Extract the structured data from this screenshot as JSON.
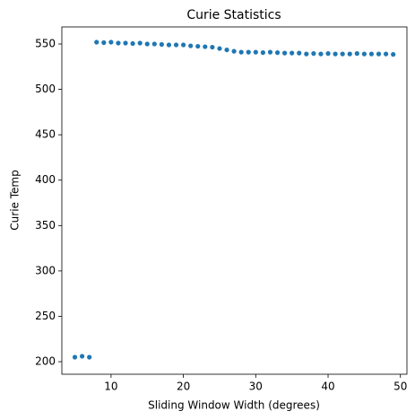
{
  "chart_data": {
    "type": "scatter",
    "title": "Curie Statistics",
    "x_label": "Sliding Window Width (degrees)",
    "y_label": "Curie Temp",
    "series": [
      {
        "name": "Curie Temp",
        "color": "#1f77b4",
        "x": [
          5,
          6,
          7,
          8,
          9,
          10,
          11,
          12,
          13,
          14,
          15,
          16,
          17,
          18,
          19,
          20,
          21,
          22,
          23,
          24,
          25,
          26,
          27,
          28,
          29,
          30,
          31,
          32,
          33,
          34,
          35,
          36,
          37,
          38,
          39,
          40,
          41,
          42,
          43,
          44,
          45,
          46,
          47,
          48,
          49
        ],
        "values": [
          205,
          206,
          205,
          552,
          551.5,
          552,
          551,
          551,
          550.5,
          551,
          550,
          550,
          549.5,
          549,
          549,
          549,
          548,
          547.5,
          547,
          546.5,
          545,
          543.5,
          542,
          541,
          541,
          541,
          540.5,
          541,
          540.5,
          540,
          540,
          540,
          539,
          539.5,
          539,
          539.5,
          539,
          539,
          539,
          539.5,
          539,
          539,
          539,
          539,
          538.5
        ]
      }
    ],
    "xlim": [
      3.2,
      50.9
    ],
    "xticks": [
      10,
      20,
      30,
      40,
      50
    ],
    "ylim": [
      186.2,
      568.8
    ],
    "yticks": [
      200,
      250,
      300,
      350,
      400,
      450,
      500,
      550
    ]
  }
}
